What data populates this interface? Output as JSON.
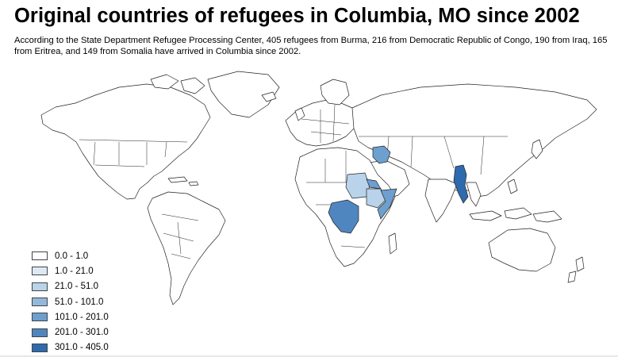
{
  "title": "Original countries of refugees in Columbia, MO since 2002",
  "subtitle": "According to the State Department Refugee Processing Center, 405 refugees from Burma, 216 from Democratic Republic of Congo, 190 from Iraq, 165 from Eritrea, and 149 from Somalia have arrived in Columbia since 2002.",
  "legend": [
    {
      "label": "0.0 - 1.0",
      "color": "#ffffff"
    },
    {
      "label": "1.0 - 21.0",
      "color": "#dce9f5"
    },
    {
      "label": "21.0 - 51.0",
      "color": "#b9d3ea"
    },
    {
      "label": "51.0 - 101.0",
      "color": "#92b9dc"
    },
    {
      "label": "101.0 - 201.0",
      "color": "#6d9fcf"
    },
    {
      "label": "201.0 - 301.0",
      "color": "#4f86c0"
    },
    {
      "label": "301.0 - 405.0",
      "color": "#2f6aae"
    }
  ],
  "highlighted_countries": [
    {
      "country": "Burma",
      "value": 405,
      "color": "#2f6aae"
    },
    {
      "country": "Democratic Republic of Congo",
      "value": 216,
      "color": "#4f86c0"
    },
    {
      "country": "Iraq",
      "value": 190,
      "color": "#6d9fcf"
    },
    {
      "country": "Eritrea",
      "value": 165,
      "color": "#6d9fcf"
    },
    {
      "country": "Somalia",
      "value": 149,
      "color": "#6d9fcf"
    },
    {
      "country": "Sudan",
      "value": null,
      "color": "#b9d3ea"
    },
    {
      "country": "Ethiopia",
      "value": null,
      "color": "#b9d3ea"
    }
  ]
}
